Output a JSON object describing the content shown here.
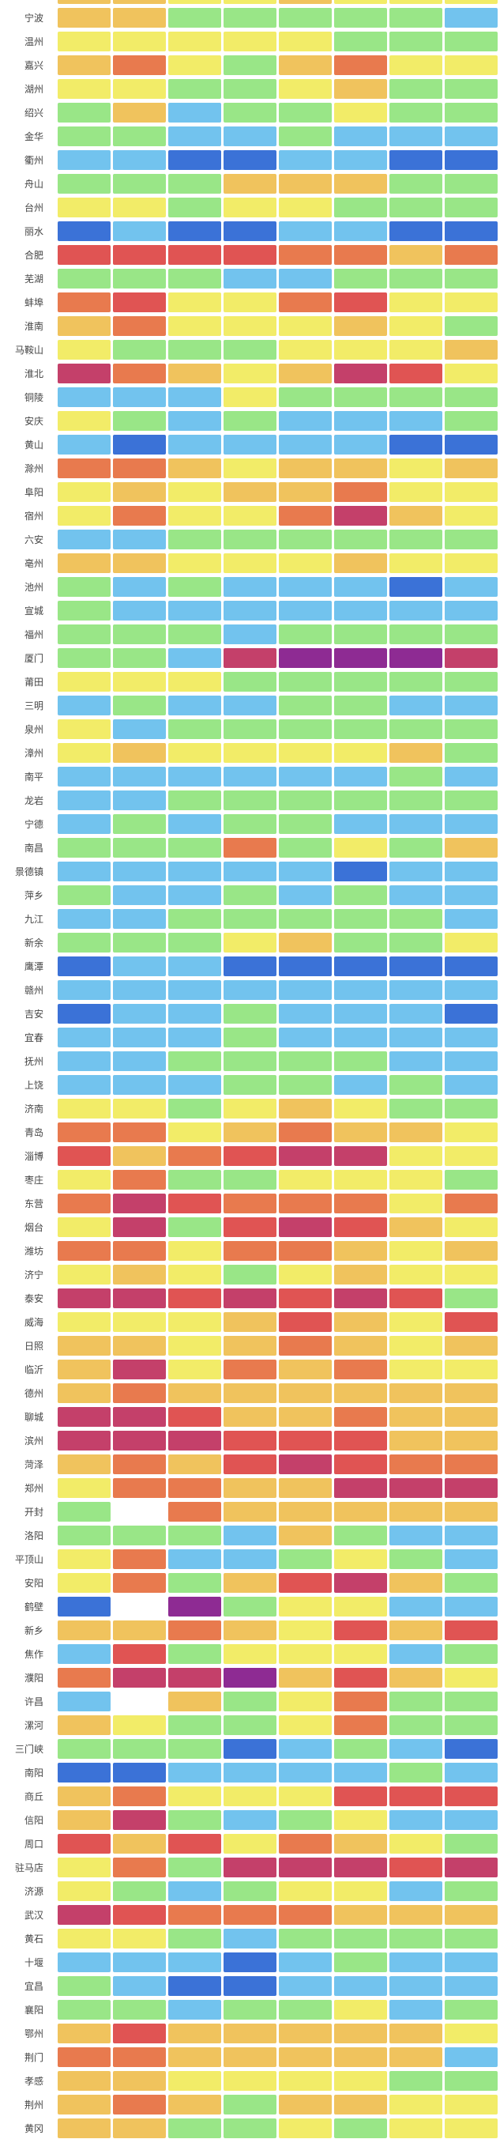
{
  "chart_data": {
    "type": "heatmap",
    "title": "",
    "xlabel": "",
    "ylabel": "",
    "columns": 8,
    "legend_position": "none",
    "grid": "white gaps between cells",
    "palette": {
      "B": "#3b72d7",
      "LB": "#72c3ee",
      "G": "#99e687",
      "Y": "#f2ec68",
      "YO": "#f0c35d",
      "OR": "#e87a4e",
      "R": "#e05453",
      "P": "#c4406a",
      "M": "#8e2b93",
      "W": "#ffffff"
    },
    "partial_top_row": {
      "label": "",
      "cells": [
        "YO",
        "YO",
        "Y",
        "Y",
        "YO",
        "Y",
        "Y",
        "Y"
      ]
    },
    "rows": [
      {
        "label": "宁波",
        "cells": [
          "YO",
          "YO",
          "G",
          "G",
          "G",
          "G",
          "G",
          "LB"
        ]
      },
      {
        "label": "温州",
        "cells": [
          "Y",
          "Y",
          "Y",
          "Y",
          "Y",
          "G",
          "G",
          "G"
        ]
      },
      {
        "label": "嘉兴",
        "cells": [
          "YO",
          "OR",
          "Y",
          "G",
          "YO",
          "OR",
          "Y",
          "Y"
        ]
      },
      {
        "label": "湖州",
        "cells": [
          "Y",
          "Y",
          "G",
          "G",
          "Y",
          "YO",
          "G",
          "G"
        ]
      },
      {
        "label": "绍兴",
        "cells": [
          "G",
          "YO",
          "LB",
          "G",
          "G",
          "Y",
          "G",
          "G"
        ]
      },
      {
        "label": "金华",
        "cells": [
          "G",
          "G",
          "LB",
          "LB",
          "G",
          "LB",
          "LB",
          "LB"
        ]
      },
      {
        "label": "衢州",
        "cells": [
          "LB",
          "LB",
          "B",
          "B",
          "LB",
          "LB",
          "B",
          "B"
        ]
      },
      {
        "label": "舟山",
        "cells": [
          "G",
          "G",
          "G",
          "YO",
          "YO",
          "YO",
          "G",
          "G"
        ]
      },
      {
        "label": "台州",
        "cells": [
          "Y",
          "Y",
          "G",
          "Y",
          "Y",
          "G",
          "G",
          "G"
        ]
      },
      {
        "label": "丽水",
        "cells": [
          "B",
          "LB",
          "B",
          "B",
          "LB",
          "LB",
          "B",
          "B"
        ]
      },
      {
        "label": "合肥",
        "cells": [
          "R",
          "R",
          "R",
          "R",
          "OR",
          "OR",
          "YO",
          "OR"
        ]
      },
      {
        "label": "芜湖",
        "cells": [
          "G",
          "G",
          "G",
          "LB",
          "LB",
          "G",
          "G",
          "G"
        ]
      },
      {
        "label": "蚌埠",
        "cells": [
          "OR",
          "R",
          "Y",
          "Y",
          "OR",
          "R",
          "Y",
          "Y"
        ]
      },
      {
        "label": "淮南",
        "cells": [
          "YO",
          "OR",
          "Y",
          "Y",
          "Y",
          "YO",
          "Y",
          "G"
        ]
      },
      {
        "label": "马鞍山",
        "cells": [
          "Y",
          "G",
          "G",
          "G",
          "Y",
          "Y",
          "Y",
          "YO"
        ]
      },
      {
        "label": "淮北",
        "cells": [
          "P",
          "OR",
          "YO",
          "Y",
          "YO",
          "P",
          "R",
          "Y"
        ]
      },
      {
        "label": "铜陵",
        "cells": [
          "LB",
          "LB",
          "LB",
          "Y",
          "G",
          "G",
          "G",
          "G"
        ]
      },
      {
        "label": "安庆",
        "cells": [
          "Y",
          "G",
          "LB",
          "G",
          "LB",
          "LB",
          "LB",
          "G"
        ]
      },
      {
        "label": "黄山",
        "cells": [
          "LB",
          "B",
          "LB",
          "LB",
          "LB",
          "LB",
          "B",
          "B"
        ]
      },
      {
        "label": "滁州",
        "cells": [
          "OR",
          "OR",
          "YO",
          "Y",
          "YO",
          "YO",
          "Y",
          "YO"
        ]
      },
      {
        "label": "阜阳",
        "cells": [
          "Y",
          "YO",
          "Y",
          "YO",
          "YO",
          "OR",
          "Y",
          "Y"
        ]
      },
      {
        "label": "宿州",
        "cells": [
          "Y",
          "OR",
          "Y",
          "Y",
          "OR",
          "P",
          "YO",
          "Y"
        ]
      },
      {
        "label": "六安",
        "cells": [
          "LB",
          "LB",
          "G",
          "G",
          "G",
          "G",
          "G",
          "G"
        ]
      },
      {
        "label": "亳州",
        "cells": [
          "YO",
          "YO",
          "Y",
          "Y",
          "Y",
          "YO",
          "Y",
          "Y"
        ]
      },
      {
        "label": "池州",
        "cells": [
          "G",
          "LB",
          "G",
          "LB",
          "LB",
          "LB",
          "B",
          "LB"
        ]
      },
      {
        "label": "宣城",
        "cells": [
          "G",
          "LB",
          "LB",
          "LB",
          "LB",
          "LB",
          "LB",
          "LB"
        ]
      },
      {
        "label": "福州",
        "cells": [
          "G",
          "G",
          "G",
          "LB",
          "G",
          "G",
          "G",
          "G"
        ]
      },
      {
        "label": "厦门",
        "cells": [
          "G",
          "G",
          "LB",
          "P",
          "M",
          "M",
          "M",
          "P"
        ]
      },
      {
        "label": "莆田",
        "cells": [
          "Y",
          "Y",
          "Y",
          "G",
          "G",
          "G",
          "G",
          "G"
        ]
      },
      {
        "label": "三明",
        "cells": [
          "LB",
          "G",
          "LB",
          "LB",
          "G",
          "G",
          "LB",
          "LB"
        ]
      },
      {
        "label": "泉州",
        "cells": [
          "Y",
          "LB",
          "G",
          "G",
          "G",
          "G",
          "G",
          "G"
        ]
      },
      {
        "label": "漳州",
        "cells": [
          "Y",
          "YO",
          "Y",
          "Y",
          "Y",
          "Y",
          "YO",
          "G"
        ]
      },
      {
        "label": "南平",
        "cells": [
          "LB",
          "LB",
          "LB",
          "LB",
          "LB",
          "LB",
          "G",
          "LB"
        ]
      },
      {
        "label": "龙岩",
        "cells": [
          "LB",
          "LB",
          "G",
          "G",
          "G",
          "G",
          "G",
          "G"
        ]
      },
      {
        "label": "宁德",
        "cells": [
          "LB",
          "G",
          "LB",
          "G",
          "G",
          "LB",
          "LB",
          "LB"
        ]
      },
      {
        "label": "南昌",
        "cells": [
          "G",
          "G",
          "G",
          "OR",
          "G",
          "Y",
          "G",
          "YO"
        ]
      },
      {
        "label": "景德镇",
        "cells": [
          "LB",
          "LB",
          "LB",
          "LB",
          "LB",
          "B",
          "LB",
          "LB"
        ]
      },
      {
        "label": "萍乡",
        "cells": [
          "G",
          "LB",
          "LB",
          "G",
          "LB",
          "G",
          "LB",
          "LB"
        ]
      },
      {
        "label": "九江",
        "cells": [
          "LB",
          "LB",
          "G",
          "G",
          "G",
          "G",
          "G",
          "LB"
        ]
      },
      {
        "label": "新余",
        "cells": [
          "G",
          "G",
          "G",
          "Y",
          "YO",
          "G",
          "G",
          "Y"
        ]
      },
      {
        "label": "鹰潭",
        "cells": [
          "B",
          "LB",
          "LB",
          "B",
          "B",
          "B",
          "B",
          "B"
        ]
      },
      {
        "label": "赣州",
        "cells": [
          "LB",
          "LB",
          "LB",
          "LB",
          "LB",
          "LB",
          "LB",
          "LB"
        ]
      },
      {
        "label": "吉安",
        "cells": [
          "B",
          "LB",
          "LB",
          "G",
          "LB",
          "LB",
          "LB",
          "B"
        ]
      },
      {
        "label": "宜春",
        "cells": [
          "LB",
          "LB",
          "LB",
          "G",
          "LB",
          "LB",
          "LB",
          "LB"
        ]
      },
      {
        "label": "抚州",
        "cells": [
          "LB",
          "LB",
          "G",
          "G",
          "G",
          "G",
          "LB",
          "LB"
        ]
      },
      {
        "label": "上饶",
        "cells": [
          "LB",
          "LB",
          "LB",
          "G",
          "G",
          "LB",
          "G",
          "LB"
        ]
      },
      {
        "label": "济南",
        "cells": [
          "Y",
          "Y",
          "G",
          "Y",
          "YO",
          "Y",
          "G",
          "G"
        ]
      },
      {
        "label": "青岛",
        "cells": [
          "OR",
          "OR",
          "Y",
          "YO",
          "OR",
          "YO",
          "YO",
          "Y"
        ]
      },
      {
        "label": "淄博",
        "cells": [
          "R",
          "YO",
          "OR",
          "R",
          "P",
          "P",
          "Y",
          "Y"
        ]
      },
      {
        "label": "枣庄",
        "cells": [
          "Y",
          "OR",
          "G",
          "G",
          "Y",
          "Y",
          "Y",
          "G"
        ]
      },
      {
        "label": "东营",
        "cells": [
          "OR",
          "P",
          "R",
          "OR",
          "OR",
          "OR",
          "Y",
          "OR"
        ]
      },
      {
        "label": "烟台",
        "cells": [
          "Y",
          "P",
          "G",
          "R",
          "P",
          "R",
          "YO",
          "Y"
        ]
      },
      {
        "label": "潍坊",
        "cells": [
          "OR",
          "OR",
          "Y",
          "OR",
          "OR",
          "YO",
          "Y",
          "YO"
        ]
      },
      {
        "label": "济宁",
        "cells": [
          "Y",
          "YO",
          "Y",
          "G",
          "Y",
          "YO",
          "Y",
          "Y"
        ]
      },
      {
        "label": "泰安",
        "cells": [
          "P",
          "P",
          "R",
          "P",
          "R",
          "P",
          "R",
          "G"
        ]
      },
      {
        "label": "威海",
        "cells": [
          "Y",
          "Y",
          "Y",
          "YO",
          "R",
          "YO",
          "Y",
          "R"
        ]
      },
      {
        "label": "日照",
        "cells": [
          "YO",
          "YO",
          "Y",
          "YO",
          "OR",
          "YO",
          "Y",
          "YO"
        ]
      },
      {
        "label": "临沂",
        "cells": [
          "YO",
          "P",
          "Y",
          "OR",
          "YO",
          "OR",
          "Y",
          "Y"
        ]
      },
      {
        "label": "德州",
        "cells": [
          "YO",
          "OR",
          "YO",
          "YO",
          "YO",
          "YO",
          "YO",
          "YO"
        ]
      },
      {
        "label": "聊城",
        "cells": [
          "P",
          "P",
          "R",
          "YO",
          "YO",
          "OR",
          "YO",
          "YO"
        ]
      },
      {
        "label": "滨州",
        "cells": [
          "P",
          "P",
          "P",
          "R",
          "R",
          "R",
          "YO",
          "YO"
        ]
      },
      {
        "label": "菏泽",
        "cells": [
          "YO",
          "OR",
          "YO",
          "R",
          "P",
          "R",
          "OR",
          "OR"
        ]
      },
      {
        "label": "郑州",
        "cells": [
          "Y",
          "OR",
          "OR",
          "YO",
          "YO",
          "P",
          "P",
          "P"
        ]
      },
      {
        "label": "开封",
        "cells": [
          "G",
          "W",
          "OR",
          "YO",
          "YO",
          "YO",
          "YO",
          "YO"
        ]
      },
      {
        "label": "洛阳",
        "cells": [
          "G",
          "G",
          "G",
          "LB",
          "YO",
          "G",
          "LB",
          "LB"
        ]
      },
      {
        "label": "平顶山",
        "cells": [
          "Y",
          "OR",
          "LB",
          "LB",
          "G",
          "Y",
          "G",
          "LB"
        ]
      },
      {
        "label": "安阳",
        "cells": [
          "Y",
          "OR",
          "G",
          "YO",
          "R",
          "P",
          "YO",
          "G"
        ]
      },
      {
        "label": "鹤壁",
        "cells": [
          "B",
          "W",
          "M",
          "G",
          "Y",
          "Y",
          "LB",
          "LB"
        ]
      },
      {
        "label": "新乡",
        "cells": [
          "YO",
          "YO",
          "OR",
          "YO",
          "Y",
          "R",
          "YO",
          "R"
        ]
      },
      {
        "label": "焦作",
        "cells": [
          "LB",
          "R",
          "G",
          "Y",
          "Y",
          "Y",
          "LB",
          "G"
        ]
      },
      {
        "label": "濮阳",
        "cells": [
          "OR",
          "P",
          "P",
          "M",
          "YO",
          "R",
          "YO",
          "Y"
        ]
      },
      {
        "label": "许昌",
        "cells": [
          "LB",
          "W",
          "YO",
          "G",
          "Y",
          "OR",
          "G",
          "G"
        ]
      },
      {
        "label": "漯河",
        "cells": [
          "YO",
          "Y",
          "G",
          "G",
          "Y",
          "OR",
          "G",
          "G"
        ]
      },
      {
        "label": "三门峡",
        "cells": [
          "G",
          "G",
          "G",
          "B",
          "LB",
          "G",
          "LB",
          "B"
        ]
      },
      {
        "label": "南阳",
        "cells": [
          "B",
          "B",
          "LB",
          "LB",
          "LB",
          "LB",
          "G",
          "LB"
        ]
      },
      {
        "label": "商丘",
        "cells": [
          "YO",
          "OR",
          "Y",
          "Y",
          "Y",
          "R",
          "R",
          "R"
        ]
      },
      {
        "label": "信阳",
        "cells": [
          "YO",
          "P",
          "G",
          "LB",
          "G",
          "Y",
          "LB",
          "LB"
        ]
      },
      {
        "label": "周口",
        "cells": [
          "R",
          "YO",
          "R",
          "Y",
          "OR",
          "YO",
          "Y",
          "G"
        ]
      },
      {
        "label": "驻马店",
        "cells": [
          "Y",
          "OR",
          "G",
          "P",
          "P",
          "P",
          "R",
          "P"
        ]
      },
      {
        "label": "济源",
        "cells": [
          "Y",
          "G",
          "LB",
          "G",
          "Y",
          "Y",
          "LB",
          "G"
        ]
      },
      {
        "label": "武汉",
        "cells": [
          "P",
          "R",
          "OR",
          "OR",
          "OR",
          "YO",
          "YO",
          "YO"
        ]
      },
      {
        "label": "黄石",
        "cells": [
          "Y",
          "Y",
          "G",
          "LB",
          "G",
          "G",
          "G",
          "G"
        ]
      },
      {
        "label": "十堰",
        "cells": [
          "LB",
          "LB",
          "LB",
          "B",
          "LB",
          "G",
          "LB",
          "LB"
        ]
      },
      {
        "label": "宜昌",
        "cells": [
          "G",
          "LB",
          "B",
          "B",
          "LB",
          "LB",
          "LB",
          "LB"
        ]
      },
      {
        "label": "襄阳",
        "cells": [
          "G",
          "G",
          "LB",
          "G",
          "G",
          "Y",
          "LB",
          "G"
        ]
      },
      {
        "label": "鄂州",
        "cells": [
          "YO",
          "R",
          "YO",
          "YO",
          "YO",
          "YO",
          "YO",
          "Y"
        ]
      },
      {
        "label": "荆门",
        "cells": [
          "OR",
          "OR",
          "YO",
          "YO",
          "YO",
          "YO",
          "YO",
          "LB"
        ]
      },
      {
        "label": "孝感",
        "cells": [
          "YO",
          "YO",
          "Y",
          "Y",
          "Y",
          "Y",
          "G",
          "G"
        ]
      },
      {
        "label": "荆州",
        "cells": [
          "YO",
          "OR",
          "YO",
          "G",
          "YO",
          "YO",
          "Y",
          "Y"
        ]
      },
      {
        "label": "黄冈",
        "cells": [
          "YO",
          "YO",
          "G",
          "G",
          "Y",
          "G",
          "Y",
          "Y"
        ]
      }
    ]
  }
}
